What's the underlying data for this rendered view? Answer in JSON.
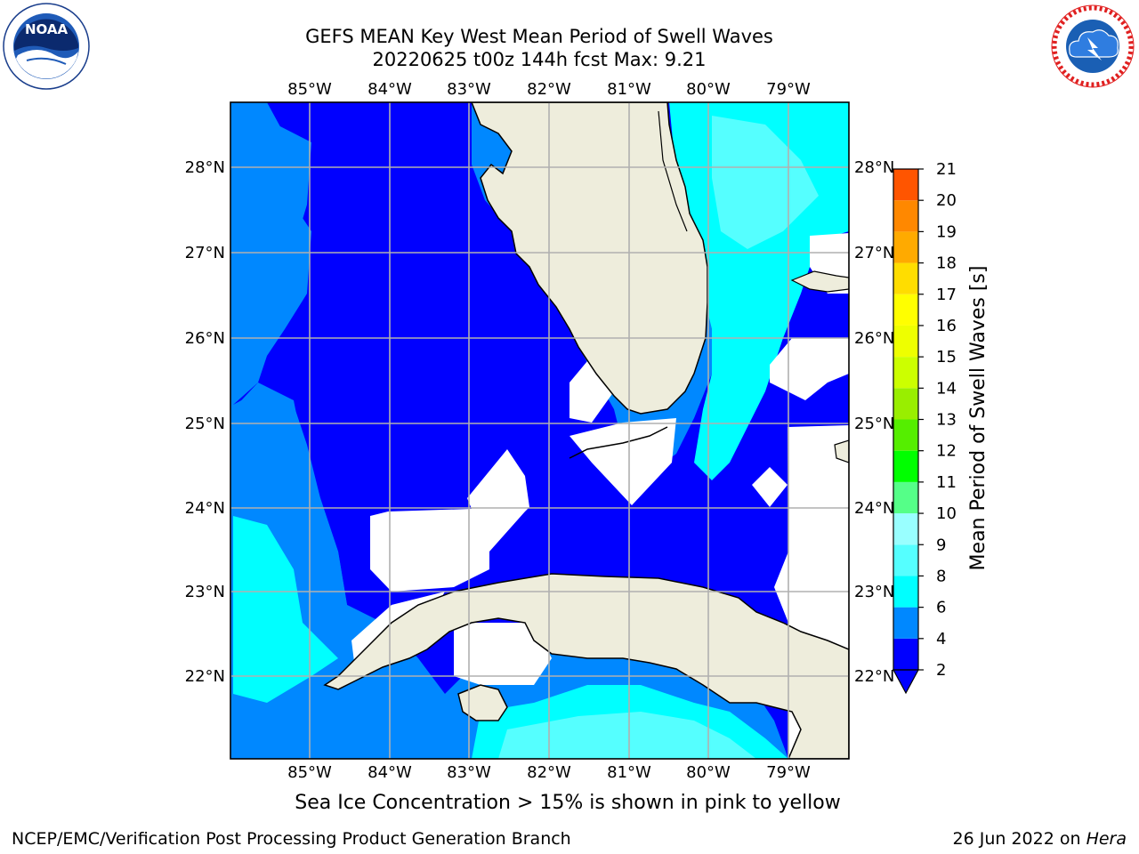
{
  "header": {
    "title_line1": "GEFS MEAN Key West Mean Period of Swell Waves",
    "title_line2": "20220625 t00z 144h fcst   Max: 9.21"
  },
  "logos": {
    "noaa_text": "NOAA",
    "noaa_ring_text": "NATIONAL OCEANIC AND ATMOSPHERIC ADMINISTRATION",
    "noaa_ring_bottom": "U.S. DEPARTMENT OF COMMERCE",
    "nws_ring_text": "NATIONAL WEATHER SERVICE"
  },
  "map": {
    "lon_labels": [
      "85°W",
      "84°W",
      "83°W",
      "82°W",
      "81°W",
      "80°W",
      "79°W"
    ],
    "lat_labels": [
      "28°N",
      "27°N",
      "26°N",
      "25°N",
      "24°N",
      "23°N",
      "22°N"
    ],
    "grid": true,
    "colors": {
      "land": "#eeeddc",
      "ocean_2_4": "#0000ff",
      "ocean_4_6": "#0088ff",
      "ocean_6_8": "#00ffff",
      "ocean_8_9": "#55ffff",
      "missing": "#ffffff",
      "grid": "#b0b0b0"
    }
  },
  "colorbar": {
    "label": "Mean Period of Swell Waves [s]",
    "ticks": [
      "2",
      "4",
      "6",
      "8",
      "9",
      "10",
      "11",
      "12",
      "13",
      "14",
      "15",
      "16",
      "17",
      "18",
      "19",
      "20",
      "21"
    ],
    "colors": [
      "#0000ff",
      "#0088ff",
      "#00ffff",
      "#55ffff",
      "#99ffff",
      "#55ff88",
      "#00ff00",
      "#55ee00",
      "#99ee00",
      "#ccff00",
      "#eeff00",
      "#ffff00",
      "#ffdd00",
      "#ffaa00",
      "#ff8800",
      "#ff5500",
      "#ff2200",
      "#ff0000"
    ]
  },
  "note": "Sea Ice Concentration > 15% is shown in pink to yellow",
  "footer": {
    "left": "NCEP/EMC/Verification Post Processing Product Generation Branch",
    "right_date": "26 Jun 2022 on ",
    "right_host": "Hera"
  }
}
